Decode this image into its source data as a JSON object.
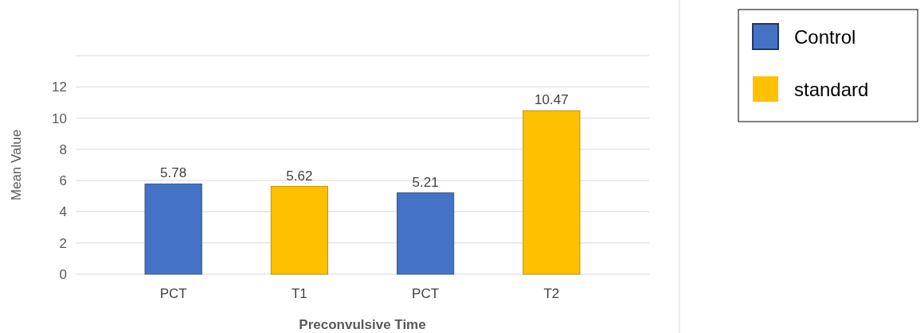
{
  "chart_data": {
    "type": "bar",
    "xlabel": "Preconvulsive Time",
    "ylabel": "Mean Value",
    "categories": [
      "PCT",
      "T1",
      "PCT",
      "T2"
    ],
    "series": [
      {
        "name": "Control",
        "color": "#4472c4",
        "values": [
          5.78,
          null,
          5.21,
          null
        ]
      },
      {
        "name": "standard",
        "color": "#ffc000",
        "values": [
          null,
          5.62,
          null,
          10.47
        ]
      }
    ],
    "ylim": [
      0,
      14
    ],
    "yticks": [
      0,
      2,
      4,
      6,
      8,
      10,
      12,
      {
        "value": 14,
        "label": null
      }
    ],
    "grid": "y",
    "data_labels": true,
    "legend": "top right"
  }
}
